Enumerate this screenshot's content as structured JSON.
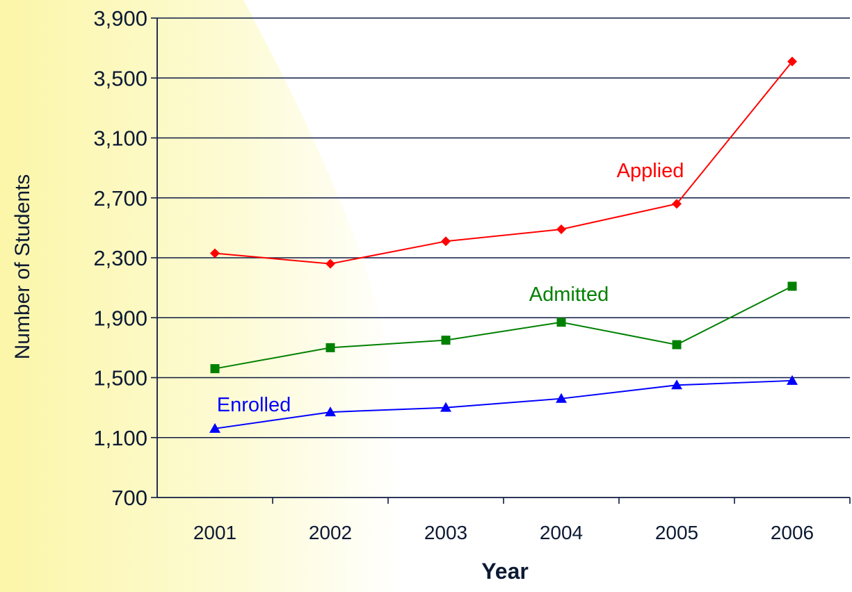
{
  "chart_data": {
    "type": "line",
    "title": "",
    "xlabel": "Year",
    "ylabel": "Number of Students",
    "categories": [
      "2001",
      "2002",
      "2003",
      "2004",
      "2005",
      "2006"
    ],
    "ylim": [
      700,
      3900
    ],
    "yticks": [
      700,
      1100,
      1500,
      1900,
      2300,
      2700,
      3100,
      3500,
      3900
    ],
    "ytick_labels": [
      "700",
      "1,100",
      "1,500",
      "1,900",
      "2,300",
      "2,700",
      "3,100",
      "3,500",
      "3,900"
    ],
    "grid": "horizontal",
    "legend": "none (inline series labels)",
    "series": [
      {
        "name": "Applied",
        "color": "#ff0000",
        "marker": "diamond",
        "values": [
          2330,
          2260,
          2410,
          2490,
          2660,
          3610
        ]
      },
      {
        "name": "Admitted",
        "color": "#008000",
        "marker": "square",
        "values": [
          1560,
          1700,
          1750,
          1870,
          1720,
          2110
        ]
      },
      {
        "name": "Enrolled",
        "color": "#0000ff",
        "marker": "triangle",
        "values": [
          1160,
          1270,
          1300,
          1360,
          1450,
          1480
        ]
      }
    ]
  }
}
